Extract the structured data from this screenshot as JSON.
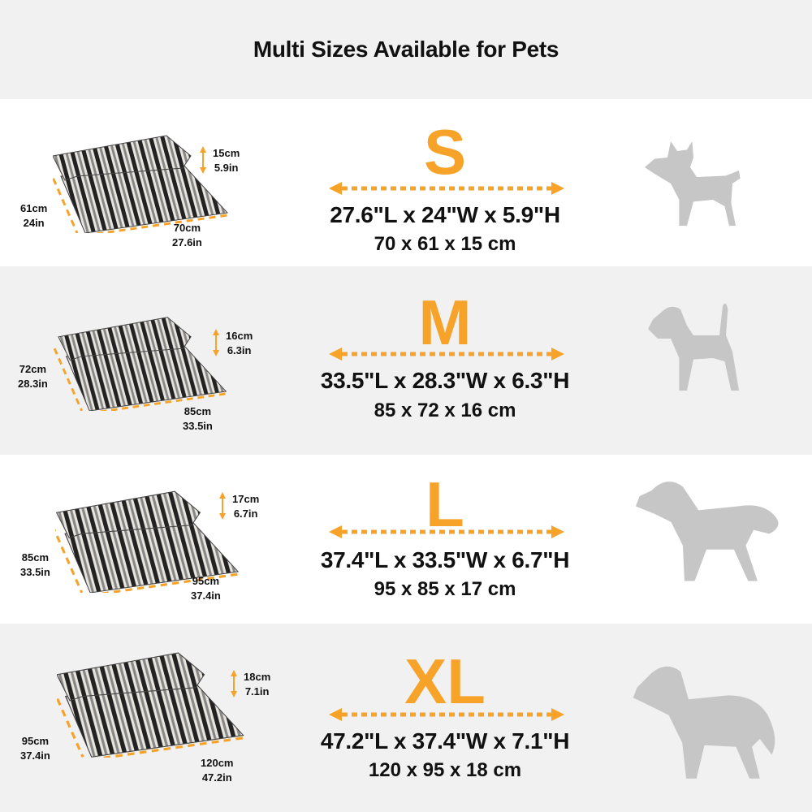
{
  "title": "Multi Sizes Available for Pets",
  "colors": {
    "accent": "#f7a229",
    "band": "#f1f1f1",
    "dog": "#c6c6c6"
  },
  "sizes": [
    {
      "label": "S",
      "dims_in": "27.6\"L x 24\"W x 5.9\"H",
      "dims_cm": "70 x 61 x 15 cm",
      "height_cm": "15cm",
      "height_in": "5.9in",
      "depth_cm": "61cm",
      "depth_in": "24in",
      "width_cm": "70cm",
      "width_in": "27.6in",
      "dog": "small-dog-icon"
    },
    {
      "label": "M",
      "dims_in": "33.5\"L x 28.3\"W x 6.3\"H",
      "dims_cm": "85 x 72 x 16 cm",
      "height_cm": "16cm",
      "height_in": "6.3in",
      "depth_cm": "72cm",
      "depth_in": "28.3in",
      "width_cm": "85cm",
      "width_in": "33.5in",
      "dog": "medium-dog-icon"
    },
    {
      "label": "L",
      "dims_in": "37.4\"L x 33.5\"W x 6.7\"H",
      "dims_cm": "95 x 85 x 17 cm",
      "height_cm": "17cm",
      "height_in": "6.7in",
      "depth_cm": "85cm",
      "depth_in": "33.5in",
      "width_cm": "95cm",
      "width_in": "37.4in",
      "dog": "large-dog-icon"
    },
    {
      "label": "XL",
      "dims_in": "47.2\"L x 37.4\"W x 7.1\"H",
      "dims_cm": "120 x 95 x 18 cm",
      "height_cm": "18cm",
      "height_in": "7.1in",
      "depth_cm": "95cm",
      "depth_in": "37.4in",
      "width_cm": "120cm",
      "width_in": "47.2in",
      "dog": "xl-dog-icon"
    }
  ]
}
